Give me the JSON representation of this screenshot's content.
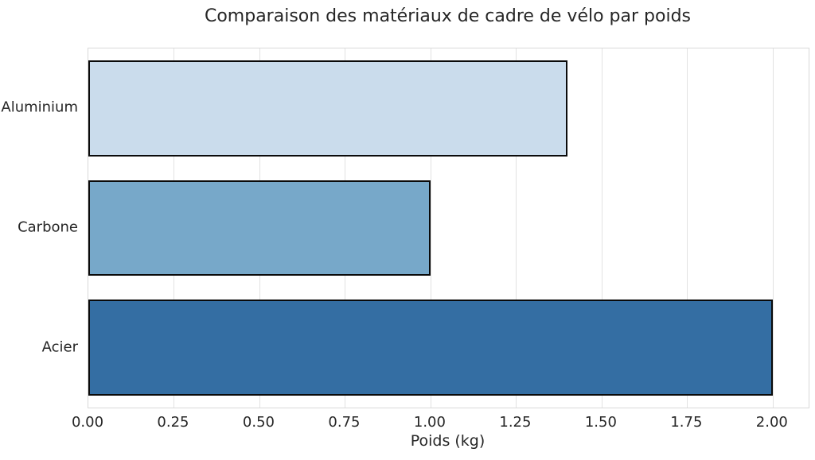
{
  "chart_data": {
    "type": "bar",
    "orientation": "horizontal",
    "title": "Comparaison des matériaux de cadre de vélo par poids",
    "xlabel": "Poids (kg)",
    "ylabel": "",
    "categories": [
      "Aluminium",
      "Carbone",
      "Acier"
    ],
    "values": [
      1.4,
      1.0,
      2.0
    ],
    "bar_colors": [
      "#cadcec",
      "#77a8c9",
      "#346ea3"
    ],
    "bar_edge_color": "#0a0a0a",
    "xlim": [
      0,
      2.105
    ],
    "xticks": [
      0,
      0.25,
      0.5,
      0.75,
      1.0,
      1.25,
      1.5,
      1.75,
      2.0
    ],
    "xtick_labels": [
      "0.00",
      "0.25",
      "0.50",
      "0.75",
      "1.00",
      "1.25",
      "1.50",
      "1.75",
      "2.00"
    ],
    "grid": true,
    "grid_axis": "x",
    "grid_color": "#e2e2e2",
    "legend": false,
    "background": "#ffffff",
    "text_color": "#262626",
    "bar_fraction": 0.8
  }
}
